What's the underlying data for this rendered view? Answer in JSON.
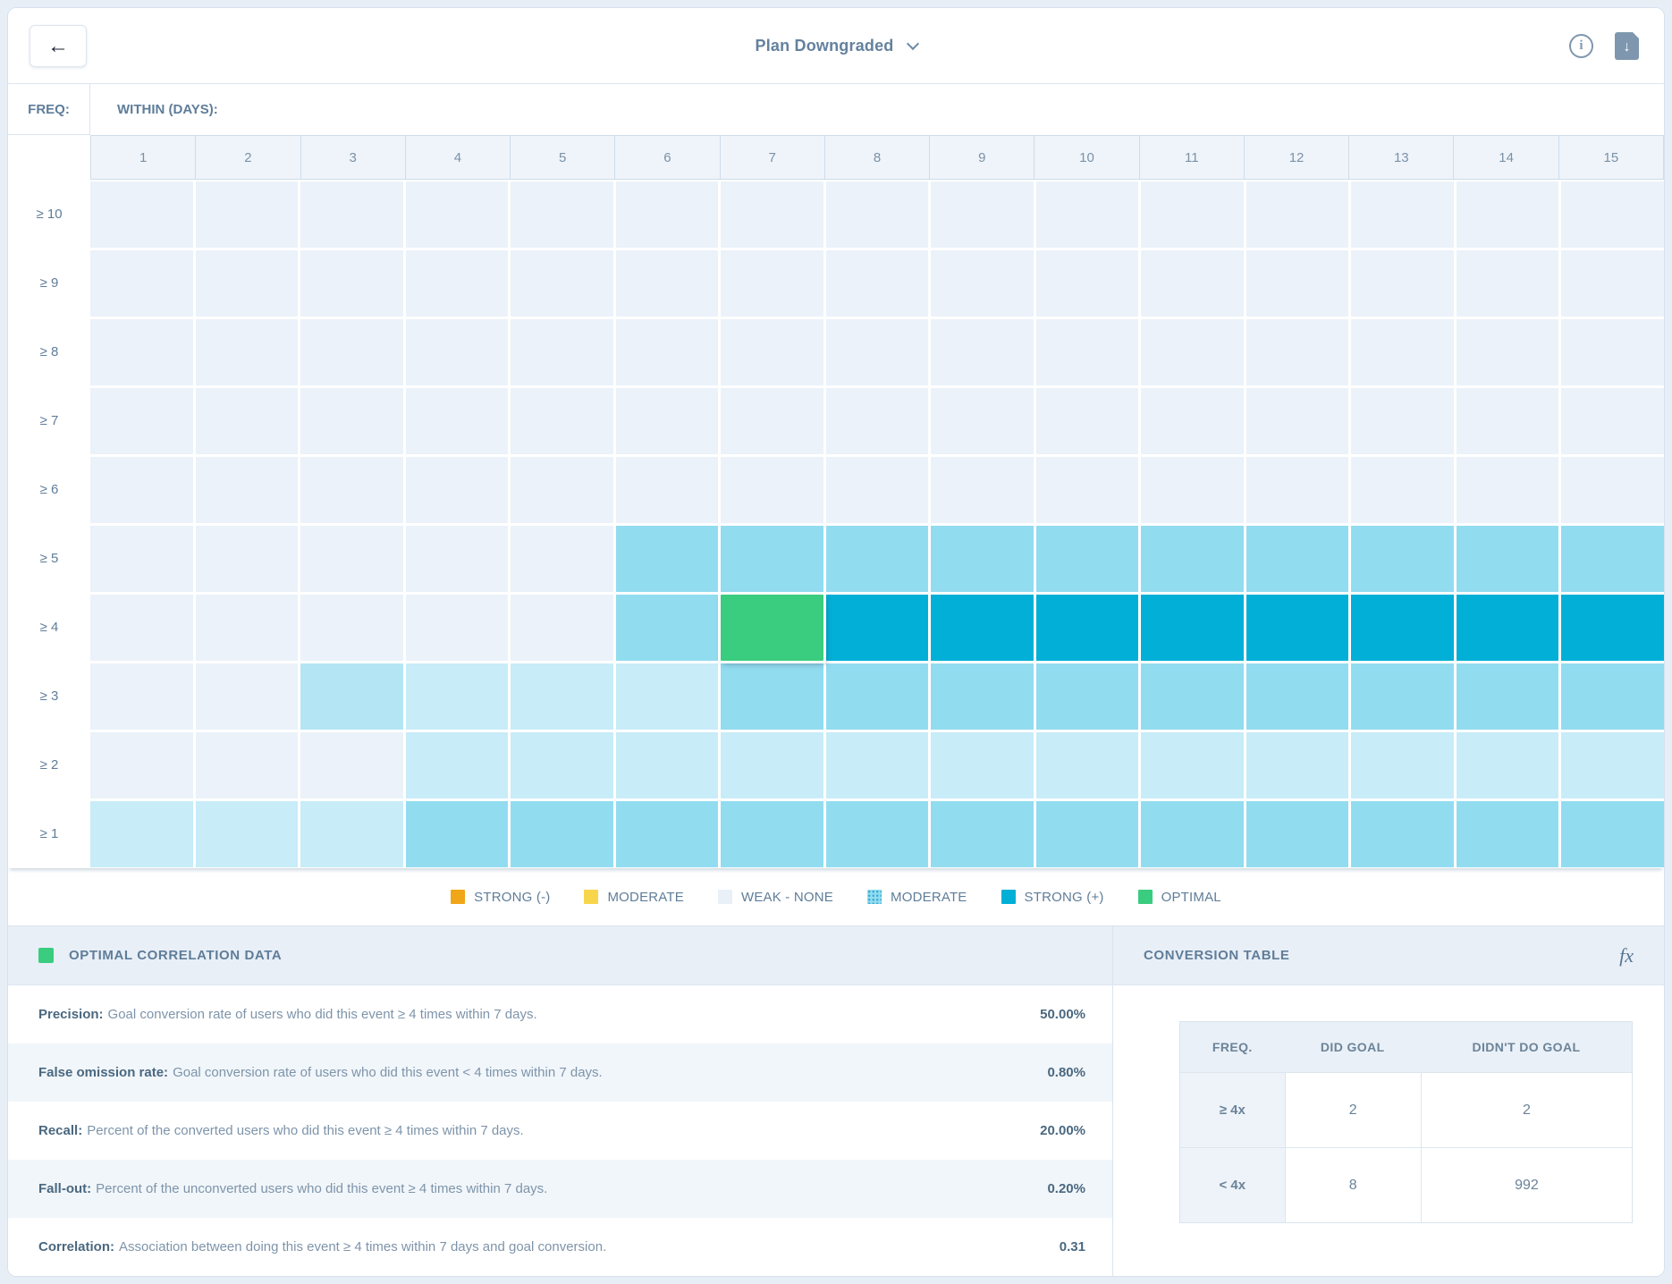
{
  "header": {
    "title": "Plan Downgraded",
    "icons": {
      "back_arrow": "←",
      "download_arrow": "↓",
      "info_glyph": "i",
      "fx_glyph": "fx"
    }
  },
  "heatmap": {
    "freq_label": "FREQ:",
    "within_label": "WITHIN (DAYS):",
    "columns": [
      "1",
      "2",
      "3",
      "4",
      "5",
      "6",
      "7",
      "8",
      "9",
      "10",
      "11",
      "12",
      "13",
      "14",
      "15"
    ],
    "rows": [
      {
        "label": "≥ 10",
        "cells": [
          "w",
          "w",
          "w",
          "w",
          "w",
          "w",
          "w",
          "w",
          "w",
          "w",
          "w",
          "w",
          "w",
          "w",
          "w"
        ]
      },
      {
        "label": "≥ 9",
        "cells": [
          "w",
          "w",
          "w",
          "w",
          "w",
          "w",
          "w",
          "w",
          "w",
          "w",
          "w",
          "w",
          "w",
          "w",
          "w"
        ]
      },
      {
        "label": "≥ 8",
        "cells": [
          "w",
          "w",
          "w",
          "w",
          "w",
          "w",
          "w",
          "w",
          "w",
          "w",
          "w",
          "w",
          "w",
          "w",
          "w"
        ]
      },
      {
        "label": "≥ 7",
        "cells": [
          "w",
          "w",
          "w",
          "w",
          "w",
          "w",
          "w",
          "w",
          "w",
          "w",
          "w",
          "w",
          "w",
          "w",
          "w"
        ]
      },
      {
        "label": "≥ 6",
        "cells": [
          "w",
          "w",
          "w",
          "w",
          "w",
          "w",
          "w",
          "w",
          "w",
          "w",
          "w",
          "w",
          "w",
          "w",
          "w"
        ]
      },
      {
        "label": "≥ 5",
        "cells": [
          "w",
          "w",
          "w",
          "w",
          "w",
          "m",
          "m",
          "m",
          "m",
          "m",
          "m",
          "m",
          "m",
          "m",
          "m"
        ]
      },
      {
        "label": "≥ 4",
        "cells": [
          "w",
          "w",
          "w",
          "w",
          "w",
          "m",
          "o",
          "s",
          "s",
          "s",
          "s",
          "s",
          "s",
          "s",
          "s"
        ]
      },
      {
        "label": "≥ 3",
        "cells": [
          "w",
          "w",
          "l2",
          "l",
          "l",
          "l",
          "m",
          "m",
          "m",
          "m",
          "m",
          "m",
          "m",
          "m",
          "m"
        ]
      },
      {
        "label": "≥ 2",
        "cells": [
          "w",
          "w",
          "w",
          "l",
          "l",
          "l",
          "l",
          "l",
          "l",
          "l",
          "l",
          "l",
          "l",
          "l",
          "l"
        ]
      },
      {
        "label": "≥ 1",
        "cells": [
          "l",
          "l",
          "l",
          "m",
          "m",
          "m",
          "m",
          "m",
          "m",
          "m",
          "m",
          "m",
          "m",
          "m",
          "m"
        ]
      }
    ]
  },
  "colors": {
    "w": "#ebf2f9",
    "l": "#c8ecf8",
    "l2": "#b4e5f4",
    "m": "#92dcf0",
    "s": "#02afd6",
    "o": "#3acc7f",
    "strong_neg": "#f0a617",
    "moderate_neg": "#f8d64b",
    "panel_header_bg": "#e9eff7",
    "accent_slate": "#5f7d99"
  },
  "legend": {
    "items": [
      {
        "label": "STRONG (-)",
        "color": "#f0a617",
        "dotted": false
      },
      {
        "label": "MODERATE",
        "color": "#f8d64b",
        "dotted": false
      },
      {
        "label": "WEAK - NONE",
        "color": "#e9f0f8",
        "dotted": false
      },
      {
        "label": "MODERATE",
        "color": "#92dcf0",
        "dotted": true
      },
      {
        "label": "STRONG (+)",
        "color": "#02afd6",
        "dotted": false
      },
      {
        "label": "OPTIMAL",
        "color": "#3acc7f",
        "dotted": false
      }
    ]
  },
  "optimal_panel": {
    "title": "OPTIMAL CORRELATION DATA",
    "rows": [
      {
        "label": "Precision:",
        "description": "Goal conversion rate of users who did this event ≥ 4 times within 7 days.",
        "value": "50.00%"
      },
      {
        "label": "False omission rate:",
        "description": "Goal conversion rate of users who did this event < 4 times within 7 days.",
        "value": "0.80%"
      },
      {
        "label": "Recall:",
        "description": "Percent of the converted users who did this event ≥ 4 times within 7 days.",
        "value": "20.00%"
      },
      {
        "label": "Fall-out:",
        "description": "Percent of the unconverted users who did this event ≥ 4 times within 7 days.",
        "value": "0.20%"
      },
      {
        "label": "Correlation:",
        "description": "Association between doing this event ≥ 4 times within 7 days and goal conversion.",
        "value": "0.31"
      }
    ]
  },
  "conversion_panel": {
    "title": "CONVERSION TABLE",
    "table": {
      "headers": [
        "FREQ.",
        "DID GOAL",
        "DIDN'T DO GOAL"
      ],
      "rows": [
        {
          "freq": "≥ 4x",
          "did": "2",
          "didnt": "2"
        },
        {
          "freq": "< 4x",
          "did": "8",
          "didnt": "992"
        }
      ]
    }
  },
  "chart_data": {
    "type": "heatmap",
    "title": "Plan Downgraded correlation heatmap",
    "xlabel": "WITHIN (DAYS):",
    "ylabel": "FREQ:",
    "x": [
      1,
      2,
      3,
      4,
      5,
      6,
      7,
      8,
      9,
      10,
      11,
      12,
      13,
      14,
      15
    ],
    "y": [
      "≥ 10",
      "≥ 9",
      "≥ 8",
      "≥ 7",
      "≥ 6",
      "≥ 5",
      "≥ 4",
      "≥ 3",
      "≥ 2",
      "≥ 1"
    ],
    "legend_levels": [
      "STRONG (-)",
      "MODERATE (-)",
      "WEAK - NONE",
      "MODERATE (+)",
      "STRONG (+)",
      "OPTIMAL"
    ],
    "cell_levels_key": {
      "w": "WEAK - NONE",
      "l": "WEAK - NONE (light)",
      "l2": "WEAK - NONE (light+)",
      "m": "MODERATE (+)",
      "s": "STRONG (+)",
      "o": "OPTIMAL"
    },
    "cells": [
      [
        "w",
        "w",
        "w",
        "w",
        "w",
        "w",
        "w",
        "w",
        "w",
        "w",
        "w",
        "w",
        "w",
        "w",
        "w"
      ],
      [
        "w",
        "w",
        "w",
        "w",
        "w",
        "w",
        "w",
        "w",
        "w",
        "w",
        "w",
        "w",
        "w",
        "w",
        "w"
      ],
      [
        "w",
        "w",
        "w",
        "w",
        "w",
        "w",
        "w",
        "w",
        "w",
        "w",
        "w",
        "w",
        "w",
        "w",
        "w"
      ],
      [
        "w",
        "w",
        "w",
        "w",
        "w",
        "w",
        "w",
        "w",
        "w",
        "w",
        "w",
        "w",
        "w",
        "w",
        "w"
      ],
      [
        "w",
        "w",
        "w",
        "w",
        "w",
        "w",
        "w",
        "w",
        "w",
        "w",
        "w",
        "w",
        "w",
        "w",
        "w"
      ],
      [
        "w",
        "w",
        "w",
        "w",
        "w",
        "m",
        "m",
        "m",
        "m",
        "m",
        "m",
        "m",
        "m",
        "m",
        "m"
      ],
      [
        "w",
        "w",
        "w",
        "w",
        "w",
        "m",
        "o",
        "s",
        "s",
        "s",
        "s",
        "s",
        "s",
        "s",
        "s"
      ],
      [
        "w",
        "w",
        "l2",
        "l",
        "l",
        "l",
        "m",
        "m",
        "m",
        "m",
        "m",
        "m",
        "m",
        "m",
        "m"
      ],
      [
        "w",
        "w",
        "w",
        "l",
        "l",
        "l",
        "l",
        "l",
        "l",
        "l",
        "l",
        "l",
        "l",
        "l",
        "l"
      ],
      [
        "l",
        "l",
        "l",
        "m",
        "m",
        "m",
        "m",
        "m",
        "m",
        "m",
        "m",
        "m",
        "m",
        "m",
        "m"
      ]
    ],
    "optimal_cell": {
      "freq": "≥ 4",
      "within_days": 7
    },
    "legend_position": "bottom"
  }
}
